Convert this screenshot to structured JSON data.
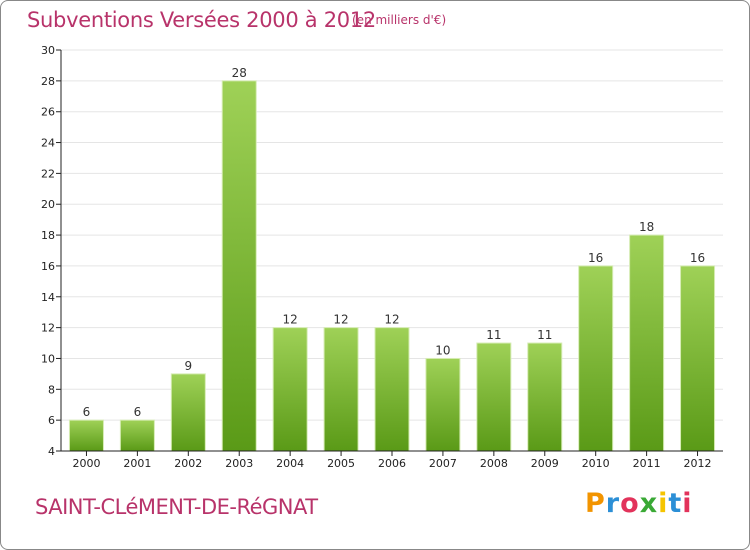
{
  "header": {
    "title": "Subventions Versées 2000 à 2012",
    "unit_note": "(en milliers d'€)"
  },
  "footer": {
    "commune": "SAINT-CLéMENT-DE-RéGNAT",
    "logo_text": "Proxiti"
  },
  "colors": {
    "title": "#b8336a",
    "bar_light": "#9fd157",
    "bar_dark": "#5a9a17",
    "axis": "#222222",
    "grid": "#e5e5e5"
  },
  "chart_data": {
    "type": "bar",
    "categories": [
      "2000",
      "2001",
      "2002",
      "2003",
      "2004",
      "2005",
      "2006",
      "2007",
      "2008",
      "2009",
      "2010",
      "2011",
      "2012"
    ],
    "values": [
      6,
      6,
      9,
      28,
      12,
      12,
      12,
      10,
      11,
      11,
      16,
      18,
      16
    ],
    "ylim": [
      4,
      30
    ],
    "yticks": [
      4,
      6,
      8,
      10,
      12,
      14,
      16,
      18,
      20,
      22,
      24,
      26,
      28,
      30
    ],
    "grid": true
  }
}
